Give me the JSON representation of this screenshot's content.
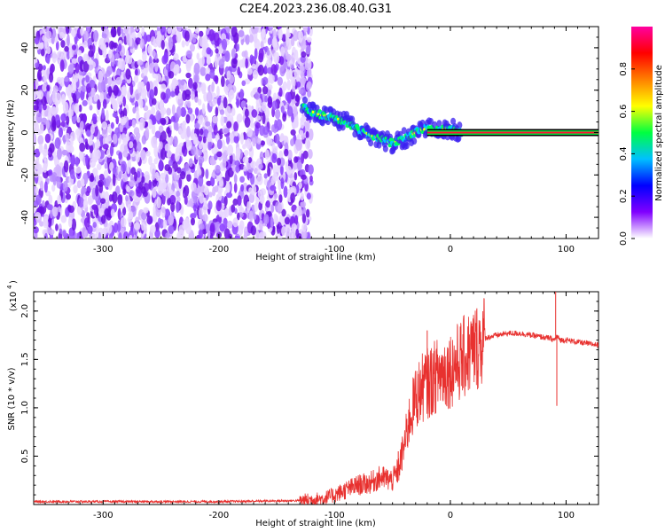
{
  "title": "C2E4.2023.236.08.40.G31",
  "chart_data": [
    {
      "type": "heatmap",
      "xlabel": "Height of straight line (km)",
      "ylabel": "Frequency (Hz)",
      "xlim": [
        -360,
        128
      ],
      "ylim": [
        -50,
        50
      ],
      "xticks": [
        "-300",
        "-200",
        "-100",
        "0",
        "100"
      ],
      "xtick_values": [
        -300,
        -200,
        -100,
        0,
        100
      ],
      "yticks": [
        "-40",
        "-20",
        "0",
        "20",
        "40"
      ],
      "ytick_values": [
        -40,
        -20,
        0,
        20,
        40
      ],
      "noise_region_x": [
        -360,
        -120
      ],
      "signal_track": {
        "x": [
          -128,
          -120,
          -110,
          -100,
          -90,
          -80,
          -70,
          -60,
          -50,
          -40,
          -30,
          -20,
          -10,
          0,
          10,
          128
        ],
        "freq": [
          12,
          10,
          8,
          7,
          5,
          2,
          -1,
          -3,
          -5,
          -3,
          0,
          2,
          1,
          2,
          0,
          0
        ]
      },
      "carrier_line_freq": 0,
      "colorbar": {
        "label": "Normalized spectral amplitude",
        "range": [
          0,
          1
        ],
        "ticks": [
          "0.0",
          "0.2",
          "0.4",
          "0.6",
          "0.8"
        ],
        "tick_values": [
          0,
          0.2,
          0.4,
          0.6,
          0.8
        ],
        "colors": [
          "#ffffff",
          "#8000ff",
          "#0000ff",
          "#00c0ff",
          "#00ff40",
          "#ffff00",
          "#ff8000",
          "#ff0000",
          "#ff00a0"
        ]
      }
    },
    {
      "type": "line",
      "xlabel": "Height of straight line (km)",
      "ylabel": "SNR (10 * v/v)",
      "yscale_label": "(x10",
      "yscale_exp": "4",
      "xlim": [
        -360,
        128
      ],
      "ylim": [
        0,
        2.2
      ],
      "xticks": [
        "-300",
        "-200",
        "-100",
        "0",
        "100"
      ],
      "xtick_values": [
        -300,
        -200,
        -100,
        0,
        100
      ],
      "yticks": [
        "0.5",
        "1.0",
        "1.5",
        "2.0"
      ],
      "ytick_values": [
        0.5,
        1.0,
        1.5,
        2.0
      ],
      "color": "#e8312f",
      "series": [
        {
          "x": [
            -360,
            -300,
            -200,
            -130,
            -120,
            -110,
            -100,
            -90,
            -80,
            -70,
            -60,
            -50,
            -45,
            -40,
            -35,
            -30,
            -25,
            -20,
            -15,
            -10,
            0,
            10,
            20,
            30,
            40,
            50,
            60,
            70,
            80,
            85,
            90,
            92,
            95,
            100,
            110,
            120,
            128
          ],
          "y": [
            0.03,
            0.03,
            0.03,
            0.04,
            0.05,
            0.06,
            0.1,
            0.15,
            0.2,
            0.22,
            0.28,
            0.25,
            0.35,
            0.6,
            0.9,
            1.1,
            1.2,
            1.25,
            1.3,
            1.35,
            1.4,
            1.5,
            1.6,
            1.72,
            1.75,
            1.77,
            1.77,
            1.75,
            1.73,
            1.72,
            1.7,
            1.74,
            1.7,
            1.7,
            1.68,
            1.66,
            1.65
          ]
        }
      ],
      "spikes": [
        {
          "x": -45,
          "y": 0.55
        },
        {
          "x": -20,
          "y": 1.8
        },
        {
          "x": -18,
          "y": 0.9
        },
        {
          "x": 91,
          "y": 2.2
        },
        {
          "x": 92,
          "y": 1.02
        }
      ]
    }
  ]
}
